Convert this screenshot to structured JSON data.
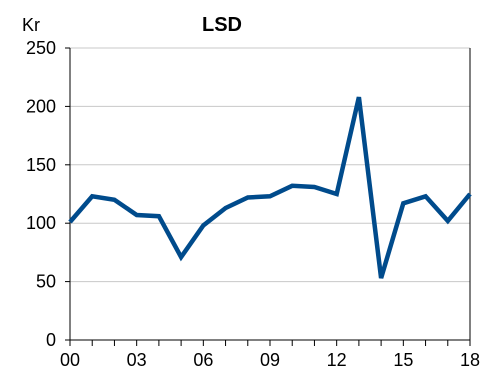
{
  "chart_data": {
    "type": "line",
    "title": "LSD",
    "ylabel": "Kr",
    "xlabel": "",
    "x": [
      2000,
      2001,
      2002,
      2003,
      2004,
      2005,
      2006,
      2007,
      2008,
      2009,
      2010,
      2011,
      2012,
      2013,
      2014,
      2015,
      2016,
      2017,
      2018
    ],
    "series": [
      {
        "values": [
          101,
          123,
          120,
          107,
          106,
          71,
          98,
          113,
          122,
          123,
          132,
          131,
          125,
          208,
          53,
          117,
          123,
          102,
          125
        ]
      }
    ],
    "xlim": [
      2000,
      2018
    ],
    "ylim": [
      0,
      250
    ],
    "x_tick_labels": [
      "00",
      "03",
      "06",
      "09",
      "12",
      "15",
      "18"
    ],
    "x_tick_values": [
      2000,
      2003,
      2006,
      2009,
      2012,
      2015,
      2018
    ],
    "y_ticks": [
      0,
      50,
      100,
      150,
      200,
      250
    ],
    "y_tick_labels": [
      "0",
      "50",
      "100",
      "150",
      "200",
      "250"
    ],
    "grid": "horizontal",
    "legend": "none",
    "line_color": "#004B8C",
    "grid_color": "#C8C8C8",
    "axis_color": "#000000"
  }
}
